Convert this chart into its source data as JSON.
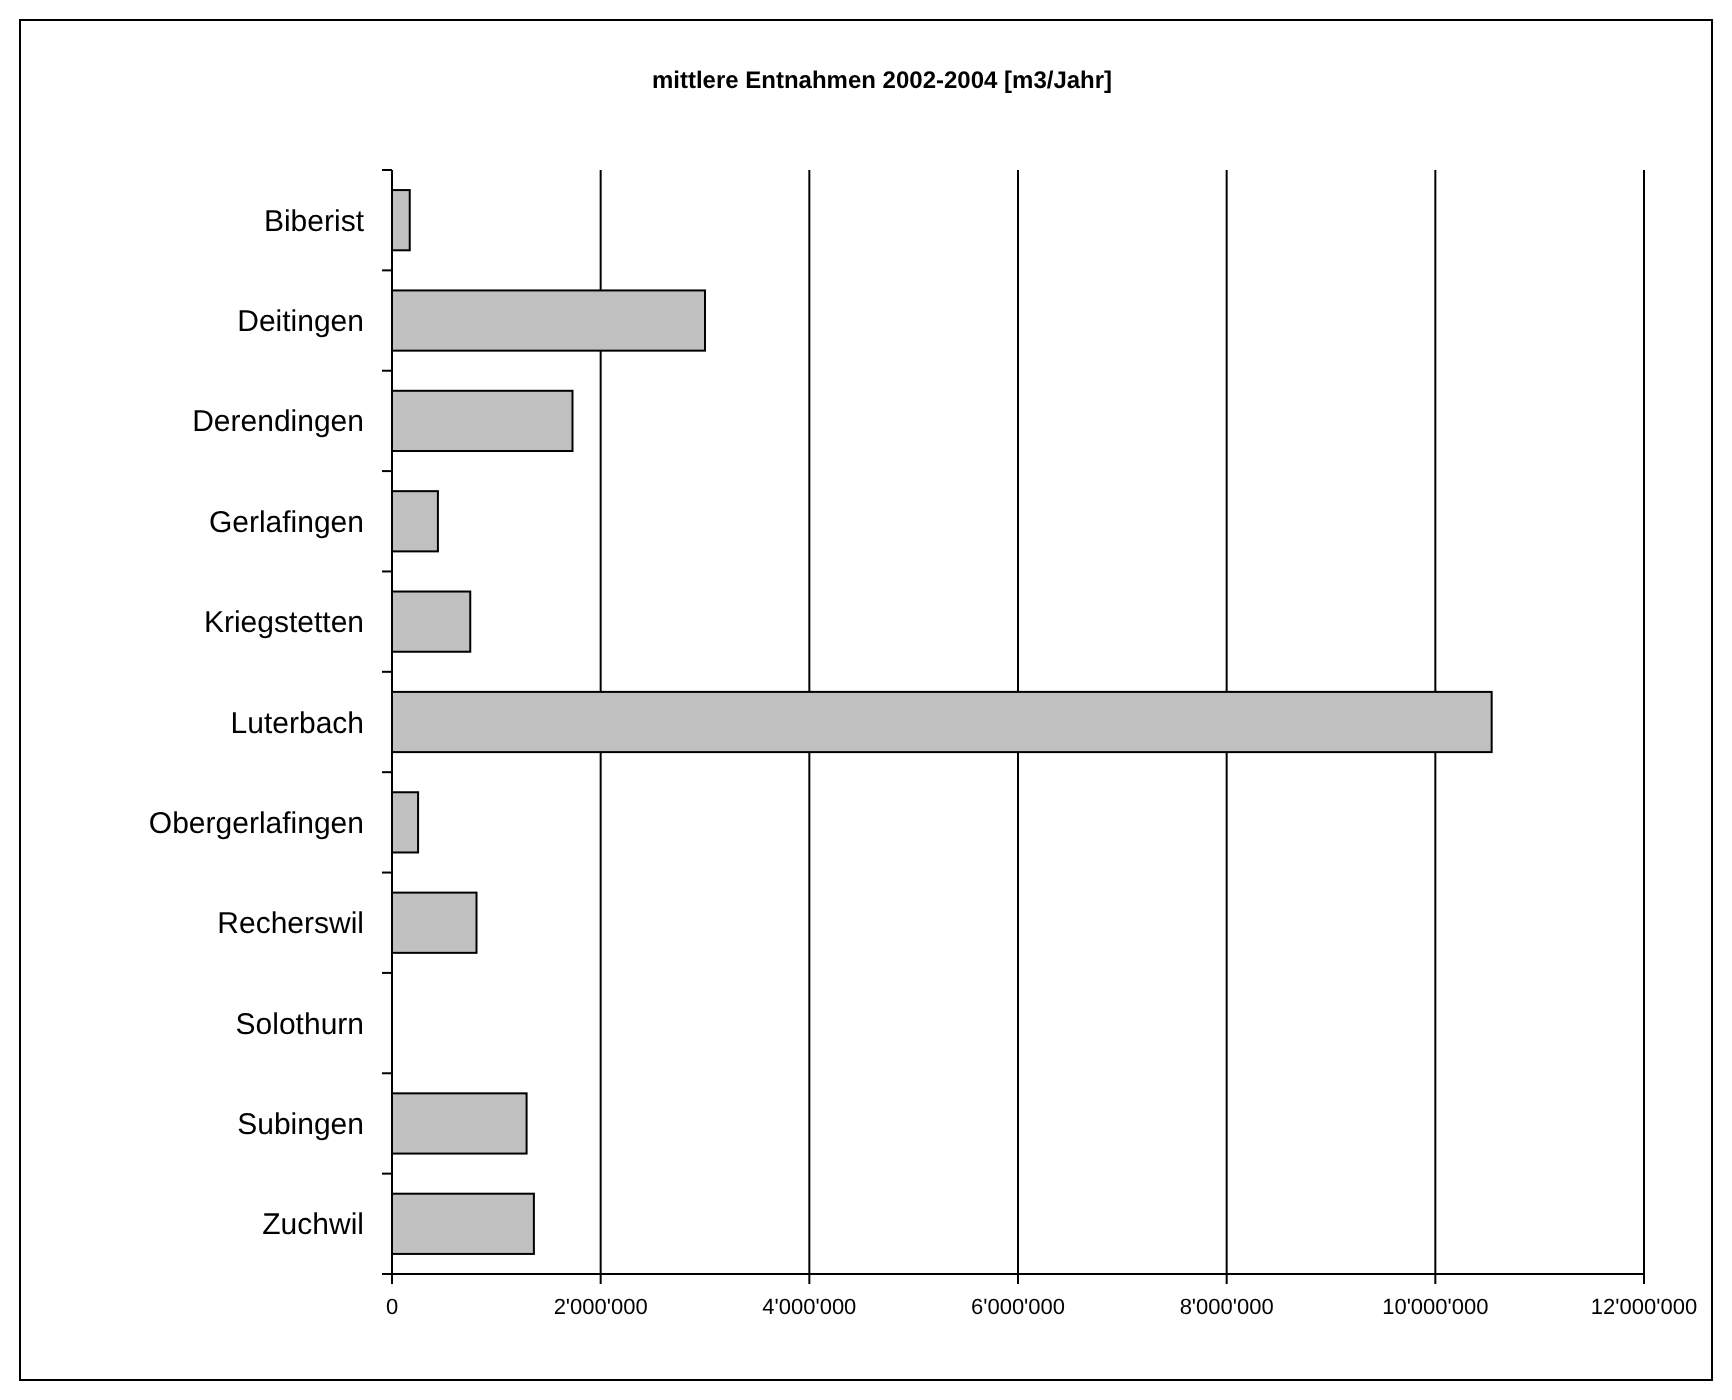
{
  "chart_data": {
    "type": "bar",
    "orientation": "horizontal",
    "title": "mittlere Entnahmen 2002-2004 [m3/Jahr]",
    "categories": [
      "Biberist",
      "Deitingen",
      "Derendingen",
      "Gerlafingen",
      "Kriegstetten",
      "Luterbach",
      "Obergerlafingen",
      "Recherswil",
      "Solothurn",
      "Subingen",
      "Zuchwil"
    ],
    "values": [
      170000,
      3000000,
      1730000,
      440000,
      750000,
      10540000,
      250000,
      810000,
      0,
      1290000,
      1360000
    ],
    "color": "#c0c0c0",
    "xlim": [
      0,
      12000000
    ],
    "xticks": [
      0,
      {
        "value": 2000000,
        "label": "2'000'000"
      },
      {
        "value": 4000000,
        "label": "4'000'000"
      },
      {
        "value": 6000000,
        "label": "6'000'000"
      },
      {
        "value": 8000000,
        "label": "8'000'000"
      },
      {
        "value": 10000000,
        "label": "10'000'000"
      },
      {
        "value": 12000000,
        "label": "12'000'000"
      }
    ],
    "grid": "x"
  }
}
